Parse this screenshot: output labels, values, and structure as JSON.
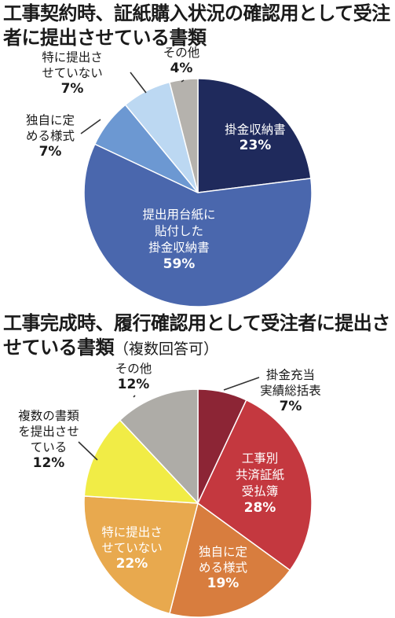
{
  "chart_data": [
    {
      "type": "pie",
      "title": "工事契約時、証紙購入状況の確認用として受注者に提出させている書類",
      "slices": [
        {
          "label": "掛金収納書",
          "lines": [
            "掛金収納書"
          ],
          "value": 23,
          "value_label": "23%",
          "color": "#1f2a5c"
        },
        {
          "label": "提出用台紙に貼付した掛金収納書",
          "lines": [
            "提出用台紙に",
            "貼付した",
            "掛金収納書"
          ],
          "value": 59,
          "value_label": "59%",
          "color": "#4a67ad"
        },
        {
          "label": "独自に定める様式",
          "lines": [
            "独自に定",
            "める様式"
          ],
          "value": 7,
          "value_label": "7%",
          "color": "#6c98d2"
        },
        {
          "label": "特に提出させていない",
          "lines": [
            "特に提出さ",
            "せていない"
          ],
          "value": 7,
          "value_label": "7%",
          "color": "#bcd8f2"
        },
        {
          "label": "その他",
          "lines": [
            "その他"
          ],
          "value": 4,
          "value_label": "4%",
          "color": "#b5b2ad"
        }
      ]
    },
    {
      "type": "pie",
      "title": "工事完成時、履行確認用として受注者に提出させている書類",
      "subtitle": "（複数回答可）",
      "slices": [
        {
          "label": "掛金充当実績総括表",
          "lines": [
            "掛金充当",
            "実績総括表"
          ],
          "value": 7,
          "value_label": "7%",
          "color": "#8c2535"
        },
        {
          "label": "工事別共済証紙受払簿",
          "lines": [
            "工事別",
            "共済証紙",
            "受払簿"
          ],
          "value": 28,
          "value_label": "28%",
          "color": "#c4383f"
        },
        {
          "label": "独自に定める様式",
          "lines": [
            "独自に定",
            "める様式"
          ],
          "value": 19,
          "value_label": "19%",
          "color": "#d87d3e"
        },
        {
          "label": "特に提出させていない",
          "lines": [
            "特に提出さ",
            "せていない"
          ],
          "value": 22,
          "value_label": "22%",
          "color": "#e8a94e"
        },
        {
          "label": "複数の書類を提出させている",
          "lines": [
            "複数の書類",
            "を提出させ",
            "ている"
          ],
          "value": 12,
          "value_label": "12%",
          "color": "#f1ec46"
        },
        {
          "label": "その他",
          "lines": [
            "その他"
          ],
          "value": 12,
          "value_label": "12%",
          "color": "#aeaca7"
        }
      ]
    }
  ]
}
